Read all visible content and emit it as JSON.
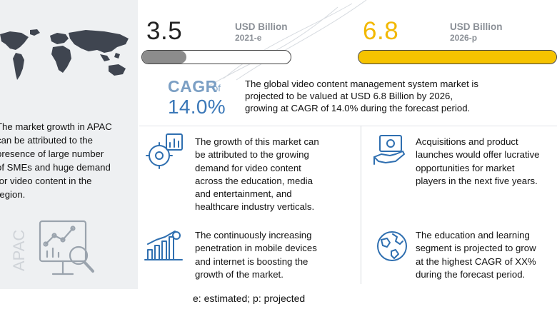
{
  "apac": {
    "text_lines": [
      "The market growth in APAC",
      "can be attributed to the",
      "presence of large number",
      "of SMEs and huge demand",
      "for video content in the",
      "region."
    ],
    "label": "APAC"
  },
  "metrics": {
    "current": {
      "value": "3.5",
      "unit": "USD Billion",
      "period": "2021-e",
      "bar_fill_fraction": 0.3,
      "bar_color": "#8c8c8c"
    },
    "projected": {
      "value": "6.8",
      "unit": "USD Billion",
      "period": "2026-p",
      "bar_fill_fraction": 1.0,
      "bar_color": "#f6c300"
    }
  },
  "cagr": {
    "label": "CAGR",
    "of": "of",
    "value": "14.0%"
  },
  "summary_lines": [
    "The global video content management system market is",
    "projected to be valued at USD 6.8 Billion  by 2026,",
    "growing at CAGR of 14.0% during the forecast period."
  ],
  "highlights": [
    {
      "icon": "chart-gear-icon",
      "lines": [
        "The growth of this market can",
        "be attributed to the growing",
        "demand for video content",
        "across the education, media",
        "and entertainment, and",
        "healthcare industry verticals."
      ]
    },
    {
      "icon": "money-hand-icon",
      "lines": [
        "Acquisitions and product",
        "launches would offer lucrative",
        "opportunities for market",
        "players in the next five years."
      ]
    },
    {
      "icon": "growth-bars-icon",
      "lines": [
        "The continuously increasing",
        "penetration in mobile devices",
        "and internet is boosting the",
        "growth of the market."
      ]
    },
    {
      "icon": "globe-icon",
      "lines": [
        "The education and learning",
        "segment is projected to grow",
        "at the highest CAGR of XX%",
        "during the forecast period."
      ]
    }
  ],
  "footnote": "e: estimated; p: projected",
  "colors": {
    "accent_blue": "#3b78b8",
    "accent_yellow": "#f6c300",
    "panel_gray": "#eef0f2"
  }
}
